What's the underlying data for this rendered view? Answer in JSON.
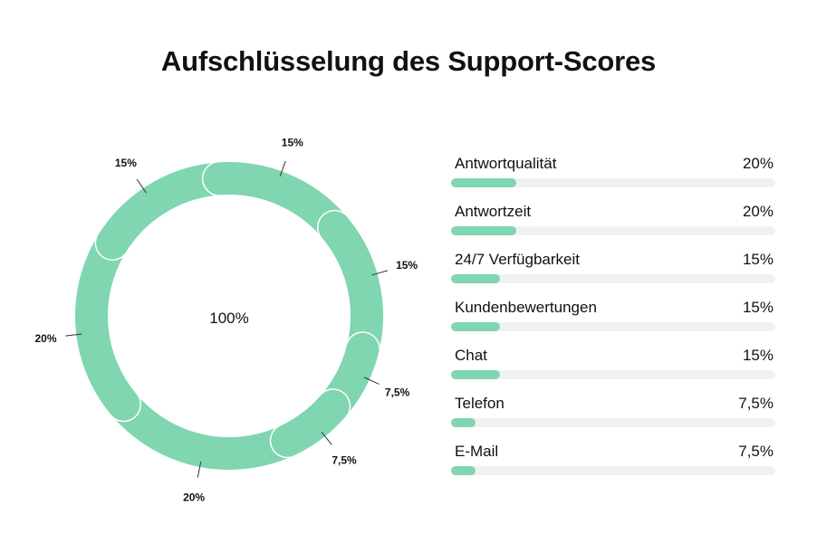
{
  "title": "Aufschlüsselung des Support-Scores",
  "center_label": "100%",
  "colors": {
    "segment": "#7fd6b0",
    "track": "#f1f1f1",
    "text": "#111111"
  },
  "chart_data": [
    {
      "type": "pie",
      "title": "Aufschlüsselung des Support-Scores",
      "center_label": "100%",
      "slices": [
        {
          "name": "Antwortqualität",
          "value": 20,
          "label": "20%"
        },
        {
          "name": "Antwortzeit",
          "value": 20,
          "label": "20%"
        },
        {
          "name": "24/7 Verfügbarkeit",
          "value": 15,
          "label": "15%"
        },
        {
          "name": "Kundenbewertungen",
          "value": 15,
          "label": "15%"
        },
        {
          "name": "Chat",
          "value": 15,
          "label": "15%"
        },
        {
          "name": "Telefon",
          "value": 7.5,
          "label": "7,5%"
        },
        {
          "name": "E-Mail",
          "value": 7.5,
          "label": "7,5%"
        }
      ]
    },
    {
      "type": "bar",
      "orientation": "horizontal",
      "categories": [
        "Antwortqualität",
        "Antwortzeit",
        "24/7 Verfügbarkeit",
        "Kundenbewertungen",
        "Chat",
        "Telefon",
        "E-Mail"
      ],
      "values": [
        20,
        20,
        15,
        15,
        15,
        7.5,
        7.5
      ],
      "value_labels": [
        "20%",
        "20%",
        "15%",
        "15%",
        "15%",
        "7,5%",
        "7,5%"
      ],
      "xlim": [
        0,
        100
      ]
    }
  ]
}
